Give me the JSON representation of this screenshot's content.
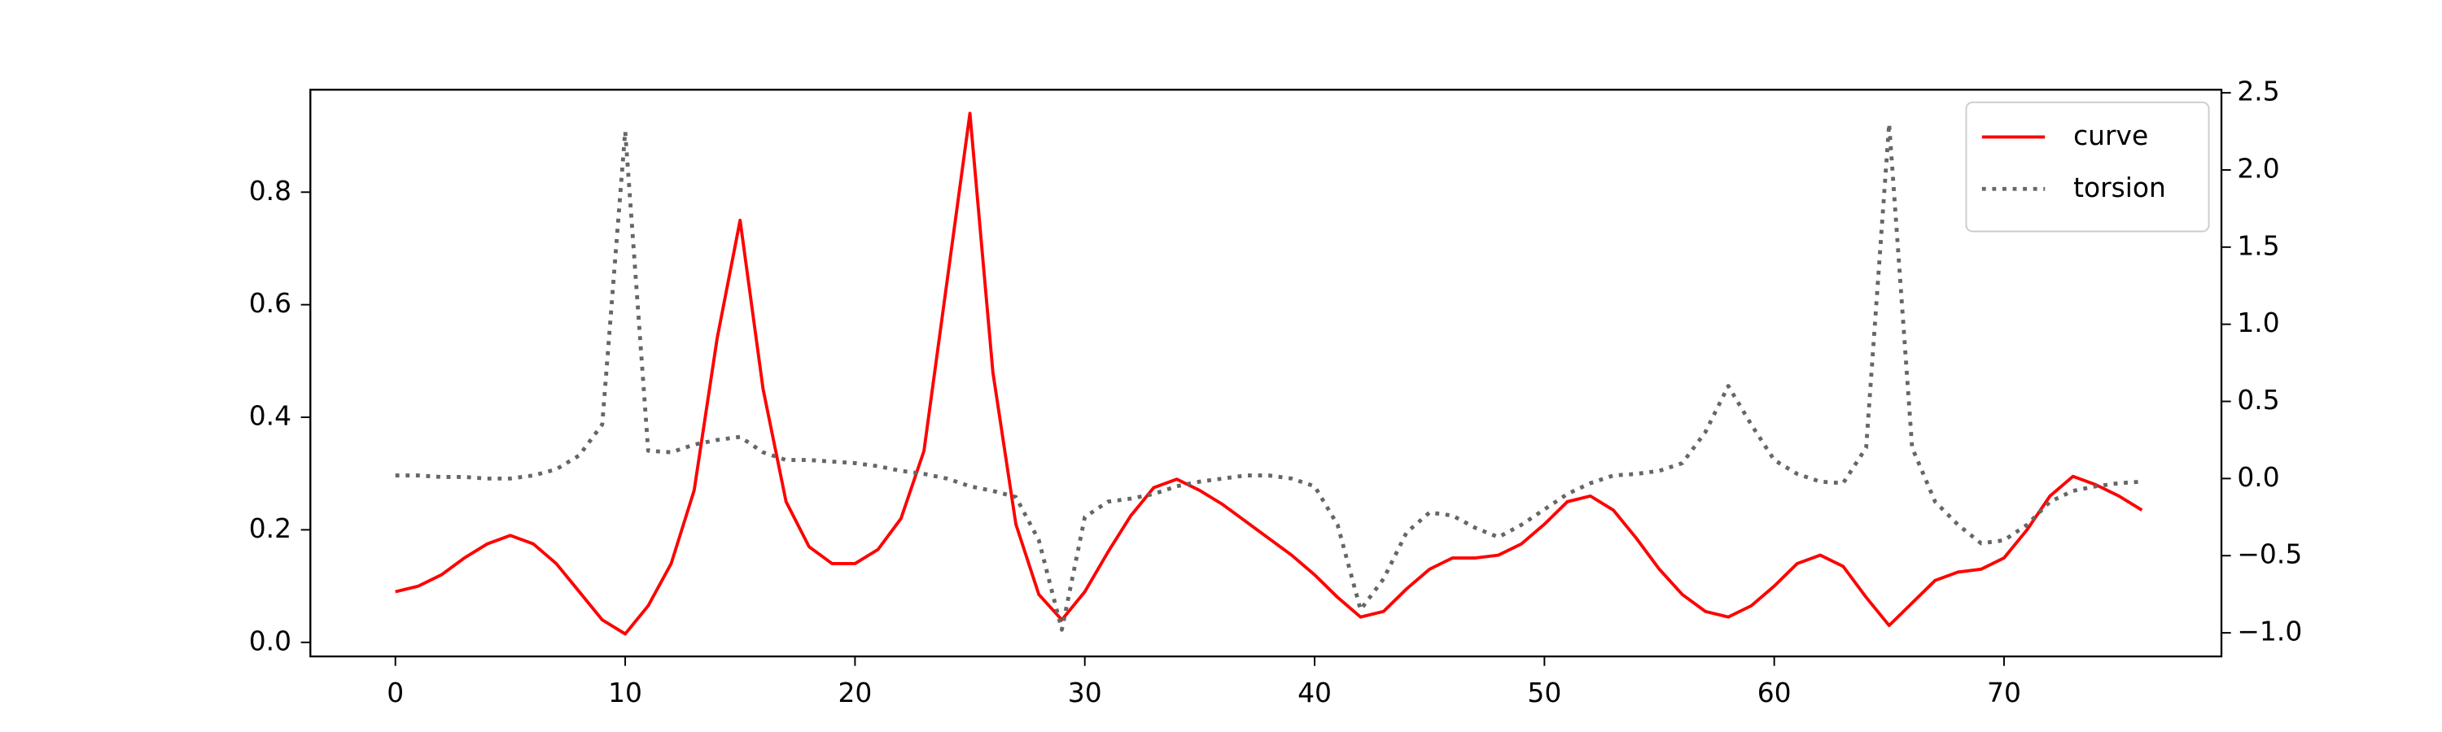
{
  "chart_data": {
    "type": "line",
    "x": [
      0,
      1,
      2,
      3,
      4,
      5,
      6,
      7,
      8,
      9,
      10,
      11,
      12,
      13,
      14,
      15,
      16,
      17,
      18,
      19,
      20,
      21,
      22,
      23,
      24,
      25,
      26,
      27,
      28,
      29,
      30,
      31,
      32,
      33,
      34,
      35,
      36,
      37,
      38,
      39,
      40,
      41,
      42,
      43,
      44,
      45,
      46,
      47,
      48,
      49,
      50,
      51,
      52,
      53,
      54,
      55,
      56,
      57,
      58,
      59,
      60,
      61,
      62,
      63,
      64,
      65,
      66,
      67,
      68,
      69,
      70,
      71,
      72,
      73,
      74,
      75,
      76
    ],
    "series": [
      {
        "name": "curve",
        "color": "#ff0000",
        "style": "solid",
        "values": [
          0.09,
          0.1,
          0.12,
          0.15,
          0.175,
          0.19,
          0.175,
          0.14,
          0.09,
          0.04,
          0.015,
          0.065,
          0.14,
          0.27,
          0.54,
          0.75,
          0.45,
          0.25,
          0.17,
          0.14,
          0.14,
          0.165,
          0.22,
          0.34,
          0.64,
          0.94,
          0.48,
          0.21,
          0.085,
          0.04,
          0.09,
          0.16,
          0.225,
          0.275,
          0.29,
          0.27,
          0.245,
          0.215,
          0.185,
          0.155,
          0.12,
          0.08,
          0.045,
          0.055,
          0.095,
          0.13,
          0.15,
          0.15,
          0.155,
          0.175,
          0.21,
          0.25,
          0.26,
          0.235,
          0.185,
          0.13,
          0.085,
          0.055,
          0.045,
          0.065,
          0.1,
          0.14,
          0.155,
          0.135,
          0.08,
          0.03,
          0.07,
          0.11,
          0.125,
          0.13,
          0.15,
          0.2,
          0.26,
          0.295,
          0.28,
          0.26,
          0.235
        ]
      },
      {
        "name": "torsion",
        "color": "#666666",
        "style": "dotted",
        "axis": "y2",
        "values": [
          0.02,
          0.02,
          0.01,
          0.01,
          0.0,
          0.0,
          0.02,
          0.06,
          0.15,
          0.35,
          2.25,
          0.18,
          0.17,
          0.22,
          0.25,
          0.27,
          0.17,
          0.12,
          0.12,
          0.11,
          0.1,
          0.08,
          0.05,
          0.03,
          0.0,
          -0.05,
          -0.08,
          -0.12,
          -0.4,
          -0.98,
          -0.25,
          -0.15,
          -0.13,
          -0.1,
          -0.05,
          -0.02,
          0.0,
          0.02,
          0.02,
          0.0,
          -0.05,
          -0.3,
          -0.85,
          -0.65,
          -0.35,
          -0.22,
          -0.24,
          -0.32,
          -0.38,
          -0.3,
          -0.2,
          -0.1,
          -0.03,
          0.02,
          0.03,
          0.05,
          0.1,
          0.3,
          0.6,
          0.35,
          0.12,
          0.03,
          -0.02,
          -0.03,
          0.2,
          2.3,
          0.2,
          -0.15,
          -0.3,
          -0.42,
          -0.4,
          -0.3,
          -0.15,
          -0.08,
          -0.05,
          -0.03,
          -0.02
        ]
      }
    ],
    "xlim": [
      -3.7,
      79.46
    ],
    "xticks": [
      0,
      10,
      20,
      30,
      40,
      50,
      60,
      70
    ],
    "ylim": [
      -0.025,
      0.982
    ],
    "yticks": [
      {
        "value": 0,
        "label": "0.0"
      },
      0.2,
      0.4,
      0.6,
      0.8
    ],
    "y2lim": [
      -1.153,
      2.52
    ],
    "y2ticks": [
      {
        "value": -1,
        "label": "−1.0"
      },
      {
        "value": -0.5,
        "label": "−0.5"
      },
      {
        "value": 0,
        "label": "0.0"
      },
      0.5,
      {
        "value": 1,
        "label": "1.0"
      },
      1.5,
      {
        "value": 2,
        "label": "2.0"
      },
      2.5
    ],
    "legend": "upper right"
  }
}
